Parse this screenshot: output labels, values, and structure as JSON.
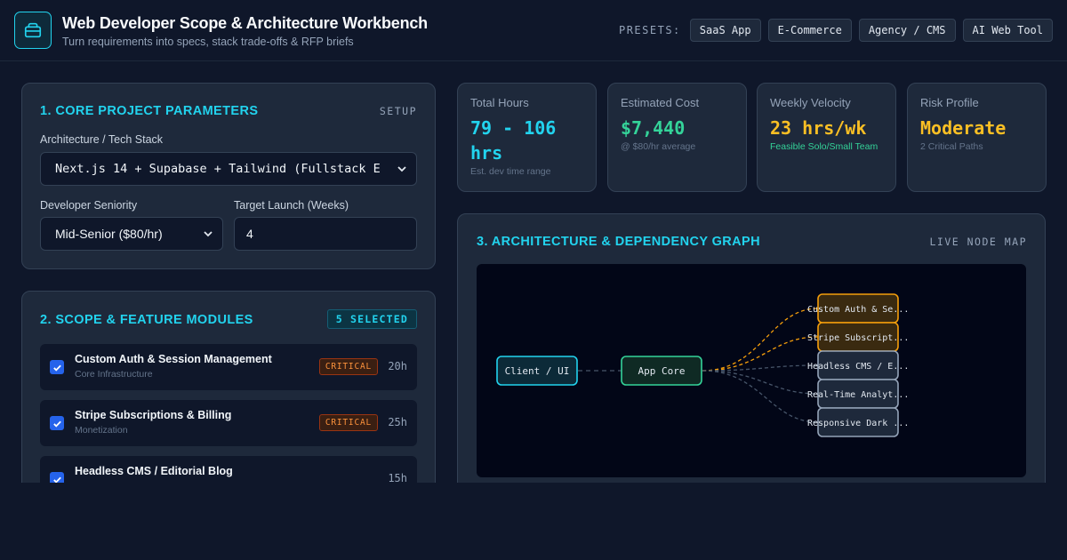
{
  "header": {
    "title": "Web Developer Scope & Architecture Workbench",
    "subtitle": "Turn requirements into specs, stack trade-offs & RFP briefs",
    "logo_icon": "package-icon",
    "presets_label": "PRESETS:",
    "presets": [
      "SaaS App",
      "E-Commerce",
      "Agency / CMS",
      "AI Web Tool"
    ]
  },
  "params": {
    "title": "1. CORE PROJECT PARAMETERS",
    "tag": "SETUP",
    "stack_label": "Architecture / Tech Stack",
    "stack_value": "Next.js 14 + Supabase + Tailwind (Fullstack E",
    "seniority_label": "Developer Seniority",
    "seniority_value": "Mid-Senior ($80/hr)",
    "launch_label": "Target Launch (Weeks)",
    "launch_value": "4"
  },
  "scope": {
    "title": "2. SCOPE & FEATURE MODULES",
    "selected_badge": "5 SELECTED",
    "features": [
      {
        "name": "Custom Auth & Session Management",
        "category": "Core Infrastructure",
        "badge": "CRITICAL",
        "hours": "20h",
        "checked": true
      },
      {
        "name": "Stripe Subscriptions & Billing",
        "category": "Monetization",
        "badge": "CRITICAL",
        "hours": "25h",
        "checked": true
      },
      {
        "name": "Headless CMS / Editorial Blog",
        "category": "",
        "badge": "",
        "hours": "15h",
        "checked": true
      }
    ]
  },
  "stats": {
    "total_hours": {
      "label": "Total Hours",
      "value": "79 - 106 hrs",
      "note": "Est. dev time range"
    },
    "cost": {
      "label": "Estimated Cost",
      "value": "$7,440",
      "note": "@ $80/hr average"
    },
    "velocity": {
      "label": "Weekly Velocity",
      "value": "23 hrs/wk",
      "note": "Feasible Solo/Small Team"
    },
    "risk": {
      "label": "Risk Profile",
      "value": "Moderate",
      "note": "2 Critical Paths"
    }
  },
  "graph_panel": {
    "title": "3. ARCHITECTURE & DEPENDENCY GRAPH",
    "tag": "LIVE NODE MAP",
    "client_node": "Client / UI",
    "core_node": "App Core",
    "module_nodes": [
      {
        "label": "Custom Auth & Se...",
        "critical": true
      },
      {
        "label": "Stripe Subscript...",
        "critical": true
      },
      {
        "label": "Headless CMS / E...",
        "critical": false
      },
      {
        "label": "Real-Time Analyt...",
        "critical": false
      },
      {
        "label": "Responsive Dark ...",
        "critical": false
      }
    ]
  },
  "colors": {
    "accent": "#22d3ee",
    "success": "#34d399",
    "warning": "#fbbf24",
    "critical": "#f59e0b",
    "background": "#0f172a",
    "panel": "#1e293b"
  }
}
